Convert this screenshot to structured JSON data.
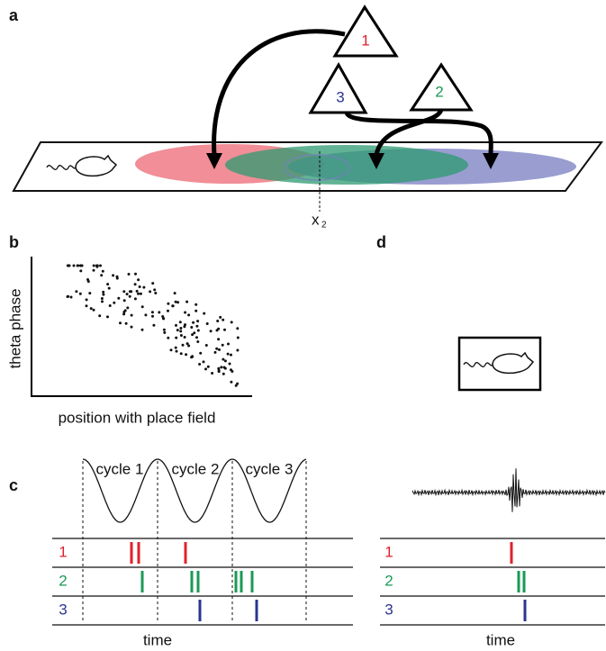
{
  "panels": {
    "a": {
      "label": "a",
      "neurons": [
        "1",
        "3",
        "2"
      ],
      "position_label": "x",
      "position_subscript": "2"
    },
    "b": {
      "label": "b",
      "y_axis_label": "theta phase",
      "x_axis_label": "position with place field"
    },
    "c": {
      "label": "c",
      "cycles": [
        "cycle 1",
        "cycle 2",
        "cycle 3"
      ],
      "rows": [
        "1",
        "2",
        "3"
      ],
      "x_axis_label": "time"
    },
    "d": {
      "label": "d",
      "rows": [
        "1",
        "2",
        "3"
      ],
      "x_axis_label": "time"
    }
  }
}
